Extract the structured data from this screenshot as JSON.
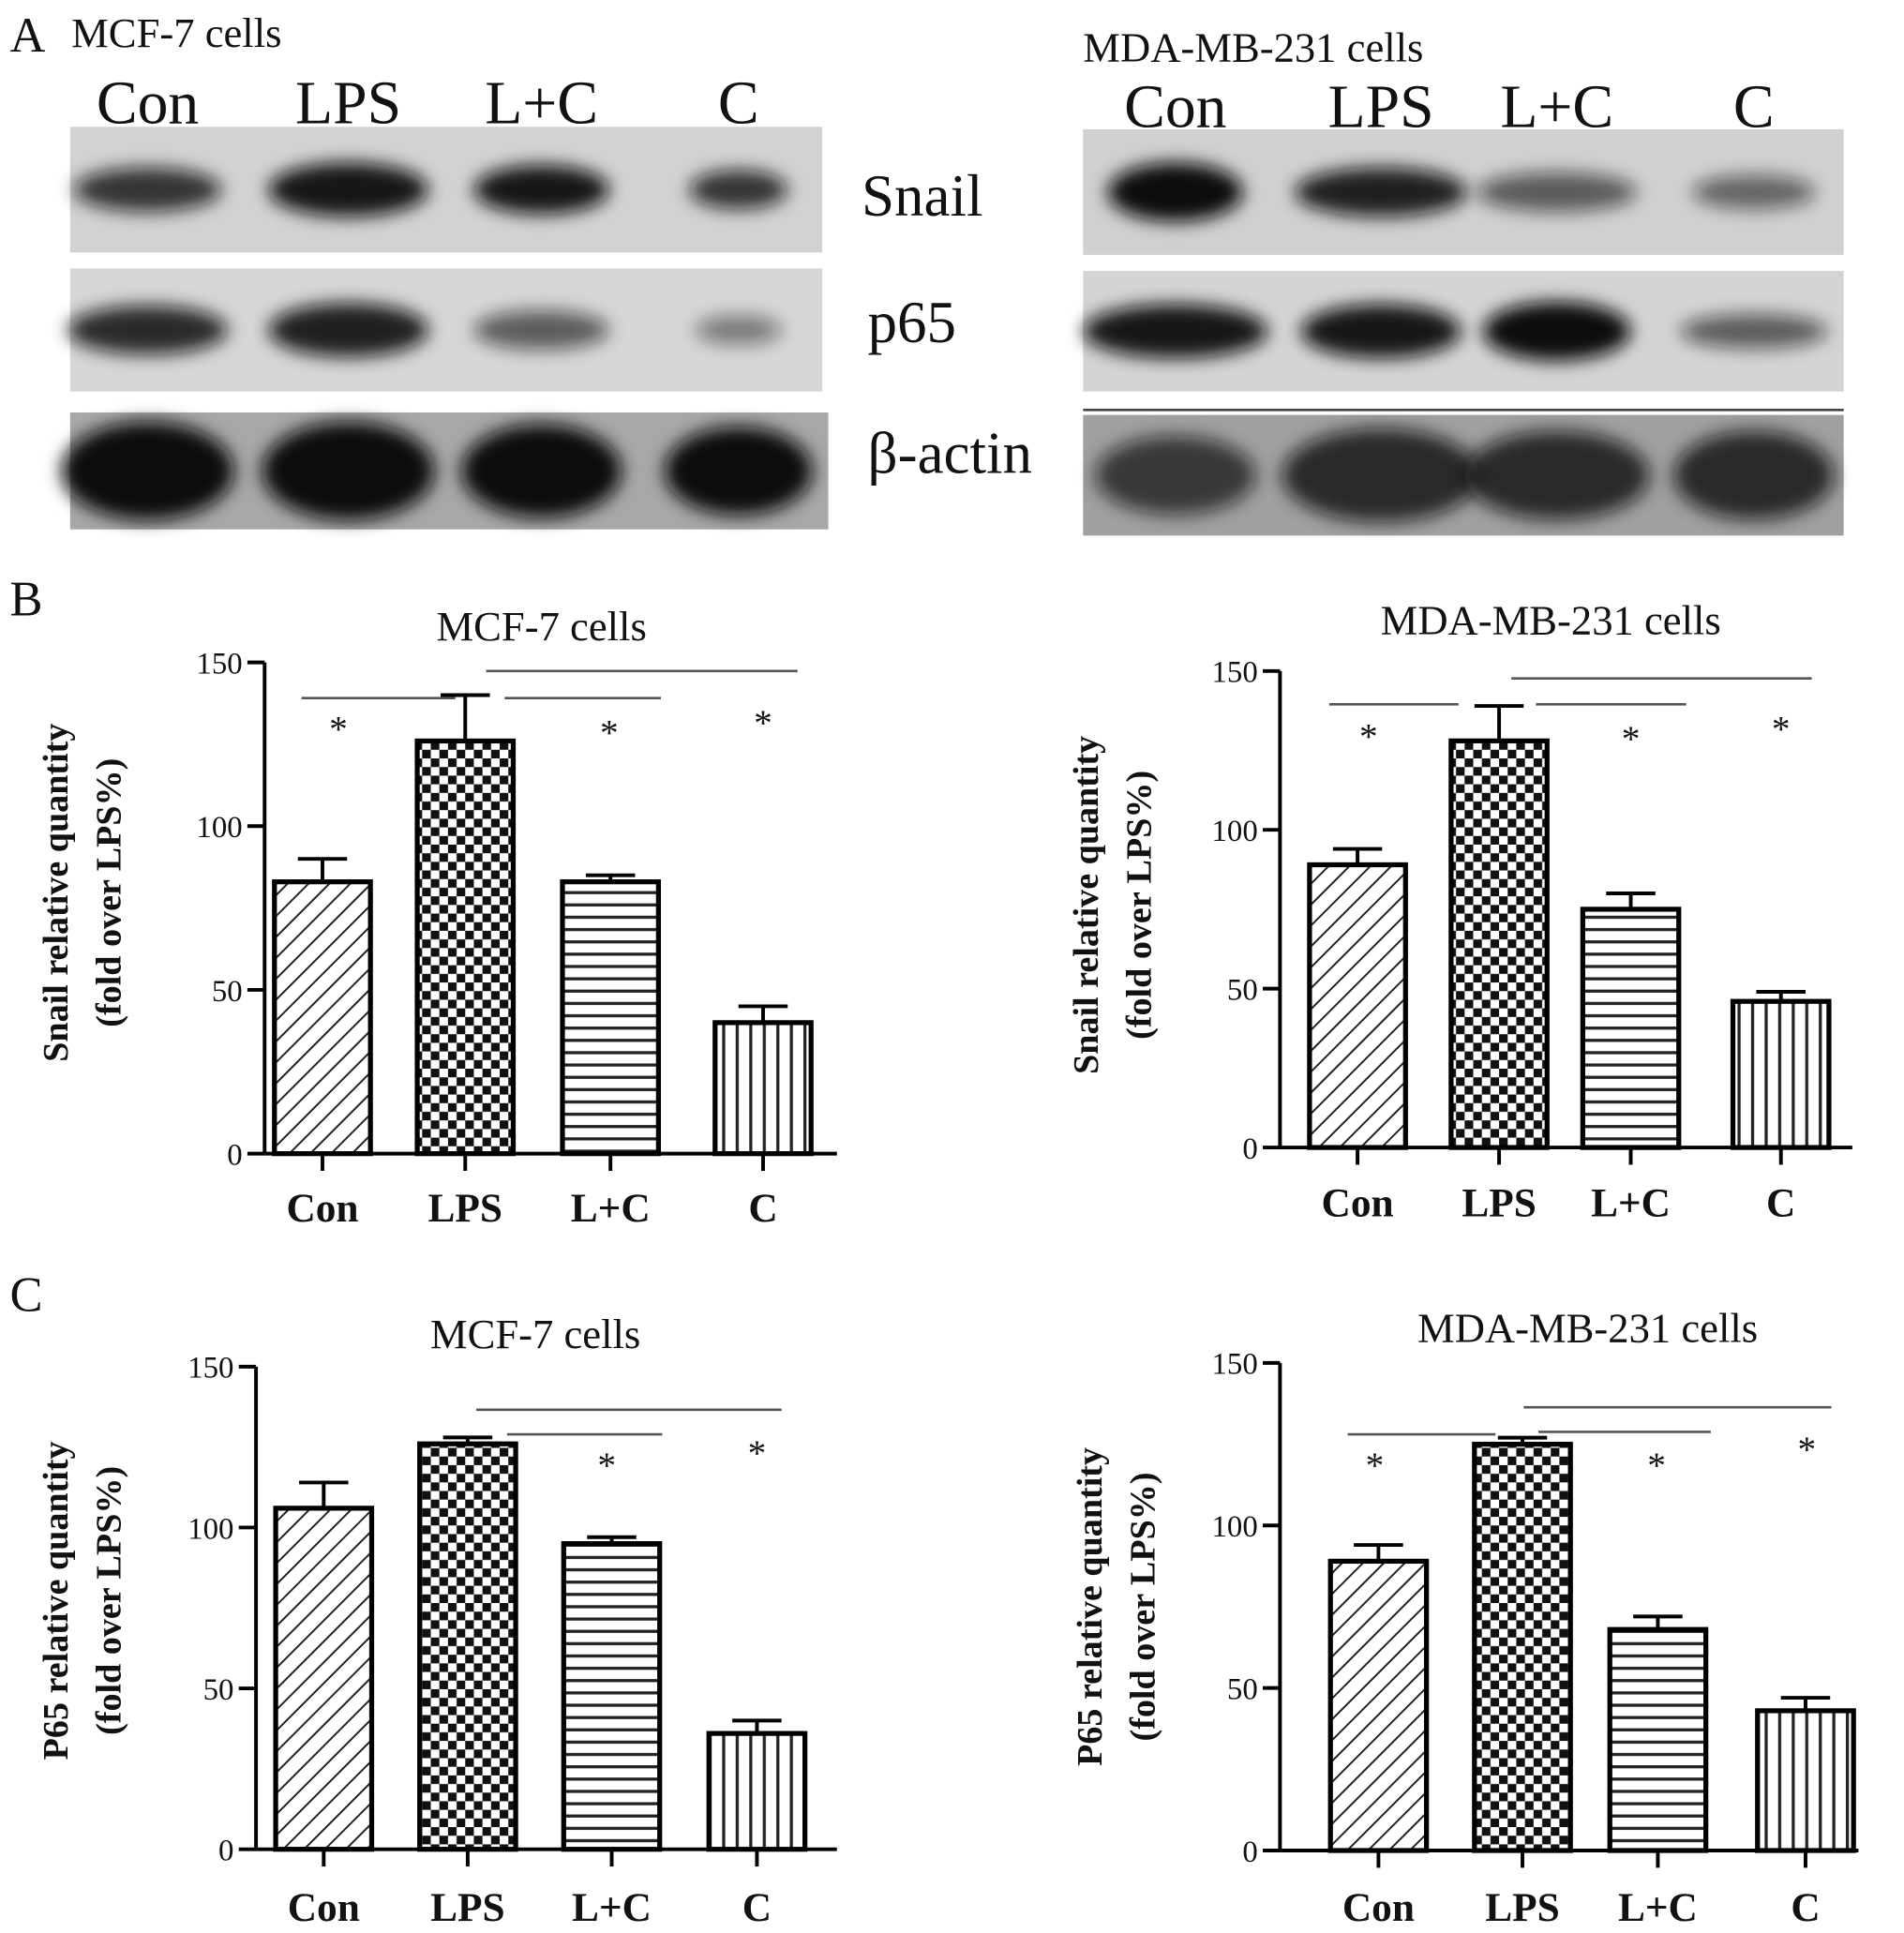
{
  "panel_labels": [
    "A",
    "B",
    "C"
  ],
  "blots": [
    {
      "title": "MCF-7 cells",
      "lanes": [
        "Con",
        "LPS",
        "L+C",
        "C"
      ]
    },
    {
      "title": "MDA-MB-231 cells",
      "lanes": [
        "Con",
        "LPS",
        "L+C",
        "C"
      ]
    }
  ],
  "blot_rows": [
    "Snail",
    "p65",
    "β-actin"
  ],
  "chart_data": [
    {
      "type": "bar",
      "title": "MCF-7 cells",
      "ylabel": [
        "Snail relative quantity",
        "(fold over LPS%)"
      ],
      "categories": [
        "Con",
        "LPS",
        "L+C",
        "C"
      ],
      "values": [
        83,
        126,
        83,
        40
      ],
      "errors": [
        7,
        14,
        2,
        5
      ],
      "ylim": [
        0,
        150
      ],
      "yticks": [
        0,
        50,
        100,
        150
      ],
      "annotations": [
        "*",
        "*",
        "*"
      ]
    },
    {
      "type": "bar",
      "title": "MDA-MB-231 cells",
      "ylabel": [
        "Snail relative quantity",
        "(fold over LPS%)"
      ],
      "categories": [
        "Con",
        "LPS",
        "L+C",
        "C"
      ],
      "values": [
        89,
        128,
        75,
        46
      ],
      "errors": [
        5,
        11,
        5,
        3
      ],
      "ylim": [
        0,
        150
      ],
      "yticks": [
        0,
        50,
        100,
        150
      ],
      "annotations": [
        "*",
        "*",
        "*"
      ]
    },
    {
      "type": "bar",
      "title": "MCF-7 cells",
      "ylabel": [
        "P65 relative quantity",
        "(fold over LPS%)"
      ],
      "categories": [
        "Con",
        "LPS",
        "L+C",
        "C"
      ],
      "values": [
        106,
        126,
        95,
        36
      ],
      "errors": [
        8,
        2,
        2,
        4
      ],
      "ylim": [
        0,
        150
      ],
      "yticks": [
        0,
        50,
        100,
        150
      ],
      "annotations": [
        "*",
        "*"
      ]
    },
    {
      "type": "bar",
      "title": "MDA-MB-231 cells",
      "ylabel": [
        "P65 relative quantity",
        "(fold over LPS%)"
      ],
      "categories": [
        "Con",
        "LPS",
        "L+C",
        "C"
      ],
      "values": [
        89,
        125,
        68,
        43
      ],
      "errors": [
        5,
        2,
        4,
        4
      ],
      "ylim": [
        0,
        150
      ],
      "yticks": [
        0,
        50,
        100,
        150
      ],
      "annotations": [
        "*",
        "*",
        "*"
      ]
    }
  ]
}
